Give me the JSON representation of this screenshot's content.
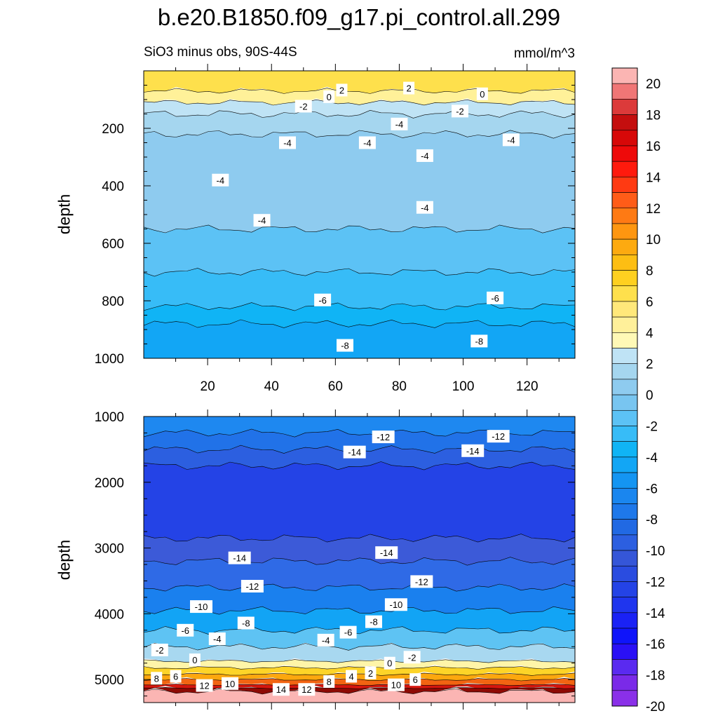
{
  "chart_data": [
    {
      "type": "contour",
      "panel": "top",
      "title": "b.e20.B1850.f09_g17.pi_control.all.299",
      "subtitle_left": "SiO3 minus obs, 90S-44S",
      "subtitle_right": "mmol/m^3",
      "ylabel": "depth",
      "xlim": [
        0,
        135
      ],
      "ylim": [
        0,
        1000
      ],
      "x_ticks": [
        20,
        40,
        60,
        80,
        100,
        120
      ],
      "x_tick_labels": [
        "20",
        "40",
        "60",
        "80",
        "100",
        "120"
      ],
      "y_ticks": [
        200,
        400,
        600,
        800,
        1000
      ],
      "y_tick_labels": [
        "200",
        "400",
        "600",
        "800",
        "1000"
      ],
      "bands": [
        {
          "from": 0,
          "to": 70,
          "color": "#fee04c"
        },
        {
          "from": 70,
          "to": 110,
          "color": "#fff199"
        },
        {
          "from": 110,
          "to": 150,
          "color": "#bfe3f5"
        },
        {
          "from": 150,
          "to": 220,
          "color": "#a5d6ef"
        },
        {
          "from": 220,
          "to": 550,
          "color": "#8ecbef"
        },
        {
          "from": 550,
          "to": 700,
          "color": "#5cc2f5"
        },
        {
          "from": 700,
          "to": 820,
          "color": "#37bcf7"
        },
        {
          "from": 820,
          "to": 880,
          "color": "#10b4f5"
        },
        {
          "from": 880,
          "to": 1000,
          "color": "#12a6f5"
        }
      ],
      "contour_labels": [
        {
          "x": 62,
          "depth": 67,
          "text": "2"
        },
        {
          "x": 83,
          "depth": 60,
          "text": "2"
        },
        {
          "x": 58,
          "depth": 90,
          "text": "0"
        },
        {
          "x": 106,
          "depth": 80,
          "text": "0"
        },
        {
          "x": 50,
          "depth": 123,
          "text": "-2"
        },
        {
          "x": 99,
          "depth": 140,
          "text": "-2"
        },
        {
          "x": 80,
          "depth": 185,
          "text": "-4"
        },
        {
          "x": 45,
          "depth": 250,
          "text": "-4"
        },
        {
          "x": 70,
          "depth": 250,
          "text": "-4"
        },
        {
          "x": 24,
          "depth": 380,
          "text": "-4"
        },
        {
          "x": 88,
          "depth": 295,
          "text": "-4"
        },
        {
          "x": 115,
          "depth": 240,
          "text": "-4"
        },
        {
          "x": 88,
          "depth": 475,
          "text": "-4"
        },
        {
          "x": 37,
          "depth": 520,
          "text": "-4"
        },
        {
          "x": 56,
          "depth": 797,
          "text": "-6"
        },
        {
          "x": 110,
          "depth": 790,
          "text": "-6"
        },
        {
          "x": 63,
          "depth": 955,
          "text": "-8"
        },
        {
          "x": 105,
          "depth": 940,
          "text": "-8"
        }
      ]
    },
    {
      "type": "contour",
      "panel": "bottom",
      "ylabel": "depth",
      "xlim": [
        0,
        135
      ],
      "ylim": [
        1000,
        5350
      ],
      "y_ticks": [
        1000,
        2000,
        3000,
        4000,
        5000
      ],
      "y_tick_labels": [
        "1000",
        "2000",
        "3000",
        "4000",
        "5000"
      ],
      "bands": [
        {
          "from": 1000,
          "to": 1250,
          "color": "#1e88f0"
        },
        {
          "from": 1250,
          "to": 1500,
          "color": "#2172e8"
        },
        {
          "from": 1500,
          "to": 1750,
          "color": "#2c5fe0"
        },
        {
          "from": 1750,
          "to": 2850,
          "color": "#2443e6"
        },
        {
          "from": 2850,
          "to": 3200,
          "color": "#3c5ad8"
        },
        {
          "from": 3200,
          "to": 3600,
          "color": "#2f6ae6"
        },
        {
          "from": 3600,
          "to": 3950,
          "color": "#1a80ee"
        },
        {
          "from": 3950,
          "to": 4250,
          "color": "#12a4f5"
        },
        {
          "from": 4250,
          "to": 4500,
          "color": "#5ec3f3"
        },
        {
          "from": 4500,
          "to": 4720,
          "color": "#a8d8f0"
        },
        {
          "from": 4720,
          "to": 4820,
          "color": "#fff5a8"
        },
        {
          "from": 4820,
          "to": 4920,
          "color": "#fdd428"
        },
        {
          "from": 4920,
          "to": 5000,
          "color": "#fca70e"
        },
        {
          "from": 5000,
          "to": 5080,
          "color": "#f26412"
        },
        {
          "from": 5080,
          "to": 5130,
          "color": "#d6160e"
        },
        {
          "from": 5130,
          "to": 5180,
          "color": "#8e0a04"
        },
        {
          "from": 5180,
          "to": 5350,
          "color": "#fbb5b3"
        }
      ],
      "contour_labels": [
        {
          "x": 75,
          "depth": 1310,
          "text": "-12"
        },
        {
          "x": 111,
          "depth": 1300,
          "text": "-12"
        },
        {
          "x": 66,
          "depth": 1540,
          "text": "-14"
        },
        {
          "x": 103,
          "depth": 1520,
          "text": "-14"
        },
        {
          "x": 76,
          "depth": 3070,
          "text": "-14"
        },
        {
          "x": 30,
          "depth": 3150,
          "text": "-14"
        },
        {
          "x": 87,
          "depth": 3510,
          "text": "-12"
        },
        {
          "x": 34,
          "depth": 3580,
          "text": "-12"
        },
        {
          "x": 79,
          "depth": 3860,
          "text": "-10"
        },
        {
          "x": 18,
          "depth": 3890,
          "text": "-10"
        },
        {
          "x": 32,
          "depth": 4140,
          "text": "-8"
        },
        {
          "x": 72,
          "depth": 4120,
          "text": "-8"
        },
        {
          "x": 13,
          "depth": 4250,
          "text": "-6"
        },
        {
          "x": 64,
          "depth": 4280,
          "text": "-6"
        },
        {
          "x": 23,
          "depth": 4380,
          "text": "-4"
        },
        {
          "x": 57,
          "depth": 4400,
          "text": "-4"
        },
        {
          "x": 5,
          "depth": 4550,
          "text": "-2"
        },
        {
          "x": 84,
          "depth": 4660,
          "text": "-2"
        },
        {
          "x": 16,
          "depth": 4700,
          "text": "0"
        },
        {
          "x": 77,
          "depth": 4750,
          "text": "0"
        },
        {
          "x": 71,
          "depth": 4900,
          "text": "2"
        },
        {
          "x": 65,
          "depth": 4950,
          "text": "4"
        },
        {
          "x": 10,
          "depth": 4950,
          "text": "6"
        },
        {
          "x": 85,
          "depth": 5000,
          "text": "6"
        },
        {
          "x": 4,
          "depth": 4980,
          "text": "8"
        },
        {
          "x": 58,
          "depth": 5030,
          "text": "8"
        },
        {
          "x": 27,
          "depth": 5060,
          "text": "10"
        },
        {
          "x": 79,
          "depth": 5080,
          "text": "10"
        },
        {
          "x": 19,
          "depth": 5090,
          "text": "12"
        },
        {
          "x": 51,
          "depth": 5150,
          "text": "12"
        },
        {
          "x": 43,
          "depth": 5150,
          "text": "14"
        }
      ]
    }
  ],
  "colorbar": {
    "labels": [
      "20",
      "18",
      "16",
      "14",
      "12",
      "10",
      "8",
      "6",
      "4",
      "2",
      "0",
      "-2",
      "-4",
      "-6",
      "-8",
      "-10",
      "-12",
      "-14",
      "-16",
      "-18",
      "-20"
    ],
    "colors": [
      "#fbb5b3",
      "#f07676",
      "#dc3a3a",
      "#c40e0e",
      "#d70808",
      "#ee0a0a",
      "#ff1a0d",
      "#ff3a12",
      "#ff5c18",
      "#fe7a14",
      "#fe9610",
      "#fdaa10",
      "#fdbe13",
      "#fed020",
      "#fee04c",
      "#ffe87a",
      "#fff09a",
      "#fff9b6",
      "#bfe3f5",
      "#a5d6ef",
      "#8ecbef",
      "#78c5f0",
      "#5cc2f5",
      "#37bcf7",
      "#10b4f5",
      "#12a6f5",
      "#1495f2",
      "#1a86ef",
      "#1e78ea",
      "#2169e3",
      "#2c5fe0",
      "#3556d8",
      "#2a4ce0",
      "#2443e6",
      "#1f35ee",
      "#1a22f5",
      "#0f14fa",
      "#2a10f5",
      "#5a2af0",
      "#7a2ae8",
      "#8a30e8"
    ]
  }
}
